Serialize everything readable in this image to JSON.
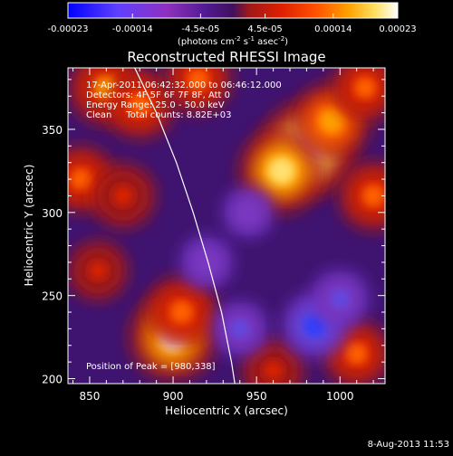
{
  "colorbar": {
    "tick_labels": [
      "-0.00023",
      "-0.00014",
      "-4.5e-05",
      "4.5e-05",
      "0.00014",
      "0.00023"
    ],
    "tick_values": [
      -0.00023,
      -0.00014,
      -4.5e-05,
      4.5e-05,
      0.00014,
      0.00023
    ],
    "range": [
      -0.00023,
      0.00023
    ],
    "units_text": "(photons cm",
    "units_sup1": "-2",
    "units_mid": " s",
    "units_sup2": "-1",
    "units_end": " asec",
    "units_sup3": "-2",
    "units_close": ")"
  },
  "chart_data": {
    "type": "heatmap",
    "title": "Reconstructed RHESSI Image",
    "xlabel": "Heliocentric X (arcsec)",
    "ylabel": "Heliocentric Y (arcsec)",
    "xlim": [
      837,
      1027
    ],
    "ylim": [
      197,
      387
    ],
    "xticks": [
      850,
      900,
      950,
      1000
    ],
    "yticks": [
      200,
      250,
      300,
      350
    ],
    "xtick_labels": [
      "850",
      "900",
      "950",
      "1000"
    ],
    "ytick_labels": [
      "200",
      "250",
      "300",
      "350"
    ],
    "annotations": [
      "17-Apr-2011 06:42:32.000 to 06:46:12.000",
      "Detectors: 4F 5F 6F 7F 8F, Att 0",
      "Energy Range: 25.0 - 50.0 keV",
      "Clean     Total counts: 8.82E+03"
    ],
    "peak_label": "Position of Peak = [980,338]",
    "peak": [
      980,
      338
    ],
    "colormap_colors": [
      "#0000ff",
      "#8050ff",
      "#9a3cb0",
      "#4a1c8a",
      "#c03030",
      "#e02000",
      "#ff6000",
      "#ffb000",
      "#ffff80",
      "#ffffff"
    ],
    "limb_curve": [
      [
        877,
        387
      ],
      [
        890,
        360
      ],
      [
        902,
        330
      ],
      [
        912,
        300
      ],
      [
        921,
        270
      ],
      [
        929,
        240
      ],
      [
        935,
        210
      ],
      [
        937,
        197
      ]
    ],
    "blobs": [
      {
        "x": 980,
        "y": 338,
        "value": 0.00023
      },
      {
        "x": 965,
        "y": 325,
        "value": 0.00019
      },
      {
        "x": 995,
        "y": 355,
        "value": 0.00016
      },
      {
        "x": 900,
        "y": 225,
        "value": 0.0002
      },
      {
        "x": 905,
        "y": 240,
        "value": 0.00014
      },
      {
        "x": 860,
        "y": 375,
        "value": 0.00015
      },
      {
        "x": 880,
        "y": 365,
        "value": 0.00013
      },
      {
        "x": 915,
        "y": 380,
        "value": 0.00012
      },
      {
        "x": 845,
        "y": 320,
        "value": 0.00012
      },
      {
        "x": 870,
        "y": 310,
        "value": 0.00011
      },
      {
        "x": 1020,
        "y": 310,
        "value": 0.00013
      },
      {
        "x": 1015,
        "y": 375,
        "value": 0.00012
      },
      {
        "x": 1010,
        "y": 215,
        "value": 0.00012
      },
      {
        "x": 960,
        "y": 205,
        "value": 0.0001
      },
      {
        "x": 855,
        "y": 265,
        "value": 9e-05
      },
      {
        "x": 940,
        "y": 230,
        "value": -8e-05
      },
      {
        "x": 985,
        "y": 232,
        "value": -0.00012
      },
      {
        "x": 1000,
        "y": 248,
        "value": -9e-05
      },
      {
        "x": 920,
        "y": 270,
        "value": -7e-05
      },
      {
        "x": 945,
        "y": 300,
        "value": -6e-05
      }
    ]
  },
  "footer": {
    "timestamp": "8-Aug-2013 11:53"
  }
}
